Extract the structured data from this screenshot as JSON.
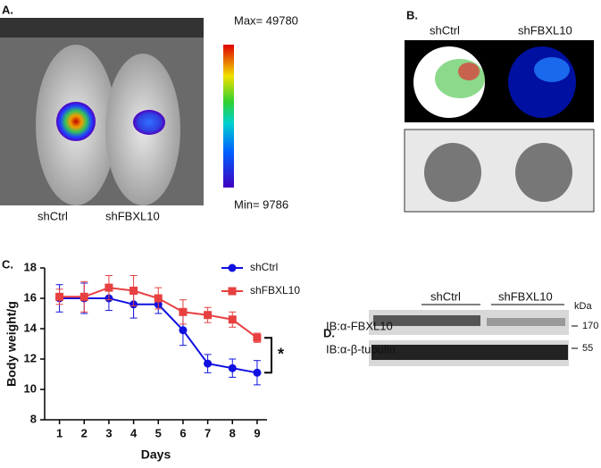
{
  "panel_a": {
    "label": "A.",
    "max": "Max= 49780",
    "min": "Min= 9786",
    "groups": [
      "shCtrl",
      "shFBXL10"
    ]
  },
  "panel_b": {
    "label": "B.",
    "groups": [
      "shCtrl",
      "shFBXL10"
    ]
  },
  "panel_c": {
    "label": "C."
  },
  "chart_data": {
    "type": "line",
    "xlabel": "Days",
    "ylabel": "Body weight/g",
    "annotation": "*",
    "x": [
      1,
      2,
      3,
      4,
      5,
      6,
      7,
      8,
      9
    ],
    "series": [
      {
        "name": "shCtrl",
        "color": "#1010e0",
        "marker": "circle",
        "values": [
          16.0,
          16.0,
          16.0,
          15.6,
          15.6,
          13.9,
          11.7,
          11.4,
          11.1
        ],
        "errors": [
          0.9,
          1.0,
          0.8,
          0.9,
          0.6,
          1.0,
          0.6,
          0.6,
          0.8
        ]
      },
      {
        "name": "shFBXL10",
        "color": "#e84040",
        "marker": "square",
        "values": [
          16.1,
          16.1,
          16.7,
          16.5,
          16.0,
          15.1,
          14.9,
          14.6,
          13.4
        ],
        "errors": [
          0.5,
          1.0,
          0.8,
          1.0,
          0.7,
          0.8,
          0.5,
          0.5,
          0.3
        ]
      }
    ],
    "xlim": [
      0.4,
      9.4
    ],
    "xticks": [
      1,
      2,
      3,
      4,
      5,
      6,
      7,
      8,
      9
    ],
    "ylim": [
      8,
      18
    ],
    "yticks": [
      8,
      10,
      12,
      14,
      16,
      18
    ],
    "legend": "upper right"
  },
  "panel_d": {
    "label": "D.",
    "groups": [
      "shCtrl",
      "shFBXL10"
    ],
    "unit": "kDa",
    "rows": [
      "IB:α-FBXL10",
      "IB:α-β-tubulin"
    ],
    "sizes": [
      "170",
      "55"
    ]
  }
}
